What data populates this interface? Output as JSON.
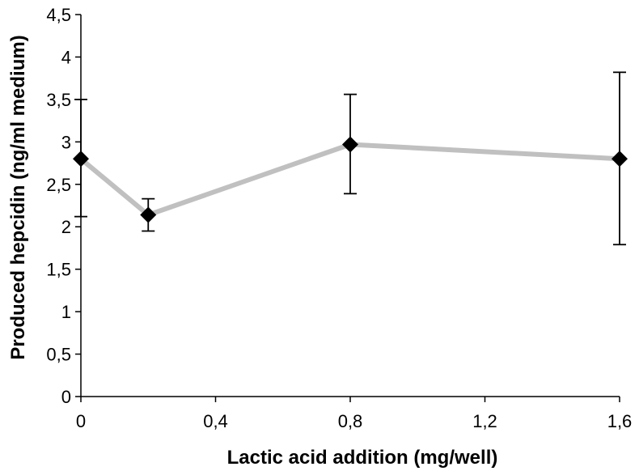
{
  "chart_data": {
    "type": "line",
    "title": "",
    "xlabel": "Lactic acid addition (mg/well)",
    "ylabel": "Produced hepcidin (ng/ml medium)",
    "xlim": [
      0,
      1.6
    ],
    "ylim": [
      0,
      4.5
    ],
    "x_ticks": [
      "0",
      "0,4",
      "0,8",
      "1,2",
      "1,6"
    ],
    "y_ticks": [
      "0",
      "0,5",
      "1",
      "1,5",
      "2",
      "2,5",
      "3",
      "3,5",
      "4",
      "4,5"
    ],
    "grid": false,
    "legend": "none",
    "series": [
      {
        "x": [
          0,
          0.2,
          0.8,
          1.6
        ],
        "y": [
          2.8,
          2.14,
          2.97,
          2.8
        ],
        "error_low": [
          2.12,
          1.95,
          2.39,
          1.79
        ],
        "error_high": [
          3.5,
          2.33,
          3.56,
          3.82
        ],
        "line_color": "#c0c0c0",
        "marker": "diamond",
        "marker_color": "#000000"
      }
    ]
  }
}
